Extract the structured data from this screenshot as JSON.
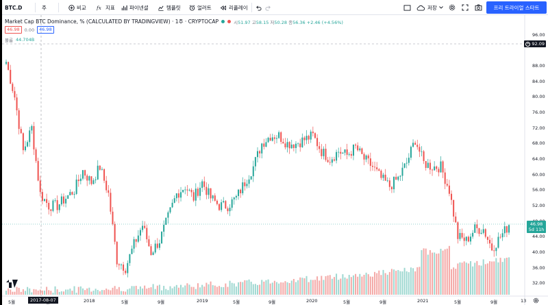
{
  "toolbar": {
    "symbol": "BTC.D",
    "interval": "주",
    "compare_label": "비교",
    "indicators_label": "지표",
    "fibonacci_label": "파이넨셜",
    "templates_label": "템플릿",
    "alert_label": "얼러트",
    "replay_label": "리플레이",
    "save_label": "저장",
    "trial_label": "프리 트라이얼 스타트"
  },
  "legend": {
    "title": "Market Cap BTC Dominance, % (CALCULATED BY TRADINGVIEW) · 1주 · CRYPTOCAP",
    "ohlc": {
      "open_key": "시",
      "open": "51.97",
      "high_key": "고",
      "high": "58.15",
      "low_key": "저",
      "low": "50.28",
      "close_key": "종",
      "close": "56.36",
      "change": "+2.46 (+4.56%)"
    },
    "value_box_1": "46.98",
    "value_box_2": "0.00",
    "value_box_3": "46.98",
    "volume_label": "볼륨",
    "volume_value": "44.704B"
  },
  "price_axis": {
    "labels": [
      "96.00",
      "92.09",
      "88.00",
      "84.00",
      "80.00",
      "76.00",
      "72.00",
      "68.00",
      "64.00",
      "60.00",
      "56.00",
      "52.00",
      "48.00",
      "44.00",
      "40.00",
      "36.00",
      "32.00"
    ],
    "crosshair_price": "92.09",
    "last_price": "46.98",
    "countdown": "5d 11h"
  },
  "time_axis": {
    "labels": [
      "5월",
      "9월",
      "2018",
      "5월",
      "9월",
      "2019",
      "5월",
      "9월",
      "2020",
      "5월",
      "9월",
      "2021",
      "5월",
      "9월",
      "13"
    ],
    "crosshair_date": "2017-08-07"
  },
  "colors": {
    "up": "#26a69a",
    "down": "#ef5350",
    "vol_up": "#9fd8d1",
    "vol_down": "#f4a9a7",
    "accent": "#2962ff"
  },
  "chart_data": {
    "type": "candlestick",
    "ylim": [
      30.5,
      97.5
    ],
    "x_range": [
      "2017-04",
      "2021-12"
    ],
    "series": [
      {
        "t": "2017-04",
        "c": 89
      },
      {
        "t": "2017-05",
        "c": 80
      },
      {
        "t": "2017-05b",
        "c": 66
      },
      {
        "t": "2017-06",
        "c": 72
      },
      {
        "t": "2017-06b",
        "c": 55
      },
      {
        "t": "2017-07",
        "c": 52
      },
      {
        "t": "2017-08",
        "c": 52
      },
      {
        "t": "2017-08b",
        "c": 54
      },
      {
        "t": "2017-09",
        "c": 56
      },
      {
        "t": "2017-10",
        "c": 61
      },
      {
        "t": "2017-11",
        "c": 58
      },
      {
        "t": "2017-12",
        "c": 62
      },
      {
        "t": "2017-12b",
        "c": 55
      },
      {
        "t": "2018-01",
        "c": 38
      },
      {
        "t": "2018-02",
        "c": 36
      },
      {
        "t": "2018-03",
        "c": 42
      },
      {
        "t": "2018-04",
        "c": 47
      },
      {
        "t": "2018-05",
        "c": 40
      },
      {
        "t": "2018-06",
        "c": 43
      },
      {
        "t": "2018-07",
        "c": 49
      },
      {
        "t": "2018-08",
        "c": 55
      },
      {
        "t": "2018-09",
        "c": 57
      },
      {
        "t": "2018-10",
        "c": 54
      },
      {
        "t": "2018-11",
        "c": 58
      },
      {
        "t": "2018-12",
        "c": 54
      },
      {
        "t": "2019-01",
        "c": 52
      },
      {
        "t": "2019-02",
        "c": 52
      },
      {
        "t": "2019-03",
        "c": 54
      },
      {
        "t": "2019-04",
        "c": 58
      },
      {
        "t": "2019-05",
        "c": 62
      },
      {
        "t": "2019-06",
        "c": 68
      },
      {
        "t": "2019-07",
        "c": 70
      },
      {
        "t": "2019-08",
        "c": 70
      },
      {
        "t": "2019-09",
        "c": 68
      },
      {
        "t": "2019-10",
        "c": 68
      },
      {
        "t": "2019-11",
        "c": 69
      },
      {
        "t": "2019-12",
        "c": 70
      },
      {
        "t": "2020-01",
        "c": 66
      },
      {
        "t": "2020-02",
        "c": 64
      },
      {
        "t": "2020-03",
        "c": 66
      },
      {
        "t": "2020-04",
        "c": 65
      },
      {
        "t": "2020-05",
        "c": 67
      },
      {
        "t": "2020-06",
        "c": 64
      },
      {
        "t": "2020-07",
        "c": 62
      },
      {
        "t": "2020-08",
        "c": 59
      },
      {
        "t": "2020-09",
        "c": 57
      },
      {
        "t": "2020-10",
        "c": 59
      },
      {
        "t": "2020-11",
        "c": 63
      },
      {
        "t": "2020-12",
        "c": 69
      },
      {
        "t": "2021-01",
        "c": 63
      },
      {
        "t": "2021-02",
        "c": 62
      },
      {
        "t": "2021-03",
        "c": 62
      },
      {
        "t": "2021-04",
        "c": 56
      },
      {
        "t": "2021-05",
        "c": 44
      },
      {
        "t": "2021-06",
        "c": 43
      },
      {
        "t": "2021-07",
        "c": 46
      },
      {
        "t": "2021-08",
        "c": 46
      },
      {
        "t": "2021-09",
        "c": 41
      },
      {
        "t": "2021-10",
        "c": 44
      },
      {
        "t": "2021-11",
        "c": 47
      }
    ]
  }
}
